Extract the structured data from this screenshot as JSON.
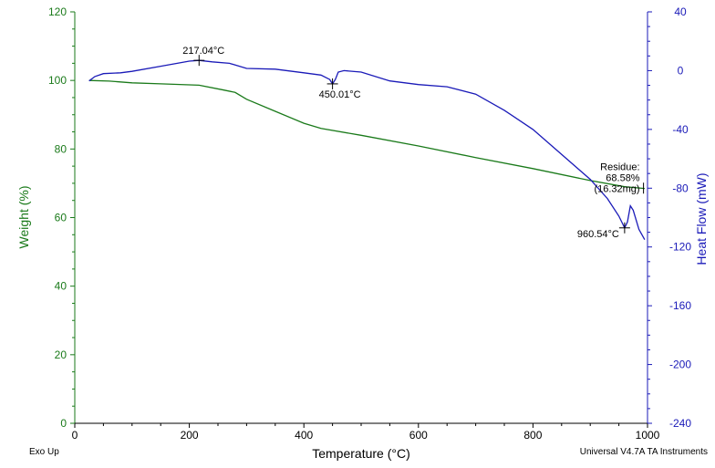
{
  "chart_data": {
    "type": "line",
    "xlabel": "Temperature (°C)",
    "ylabel_left": "Weight (%)",
    "ylabel_right": "Heat Flow (mW)",
    "xlim": [
      0,
      1000
    ],
    "ylim_left": [
      0,
      120
    ],
    "ylim_right": [
      -240,
      40
    ],
    "x_ticks": [
      0,
      200,
      400,
      600,
      800,
      1000
    ],
    "y_left_ticks": [
      0,
      20,
      40,
      60,
      80,
      100,
      120
    ],
    "y_right_ticks": [
      -240,
      -200,
      -160,
      -120,
      -80,
      -40,
      0,
      40
    ],
    "grid": false,
    "series": [
      {
        "axis": "left",
        "color": "#1a7a1a",
        "points": [
          [
            25,
            100
          ],
          [
            60,
            99.8
          ],
          [
            100,
            99.3
          ],
          [
            150,
            99.0
          ],
          [
            217,
            98.6
          ],
          [
            260,
            97.2
          ],
          [
            280,
            96.5
          ],
          [
            300,
            94.5
          ],
          [
            350,
            91.0
          ],
          [
            400,
            87.5
          ],
          [
            430,
            86.0
          ],
          [
            500,
            84.0
          ],
          [
            600,
            80.9
          ],
          [
            700,
            77.5
          ],
          [
            800,
            74.3
          ],
          [
            900,
            70.8
          ],
          [
            960,
            69.0
          ],
          [
            995,
            68.5
          ]
        ]
      },
      {
        "axis": "right",
        "color": "#1a1ab8",
        "points": [
          [
            25,
            -7
          ],
          [
            35,
            -4
          ],
          [
            50,
            -2
          ],
          [
            80,
            -1.5
          ],
          [
            100,
            -0.5
          ],
          [
            150,
            3
          ],
          [
            200,
            6.5
          ],
          [
            217,
            7
          ],
          [
            240,
            6
          ],
          [
            270,
            5
          ],
          [
            300,
            1.5
          ],
          [
            350,
            1
          ],
          [
            400,
            -1.5
          ],
          [
            430,
            -3
          ],
          [
            445,
            -6
          ],
          [
            450,
            -9
          ],
          [
            455,
            -6
          ],
          [
            460,
            -1
          ],
          [
            470,
            0
          ],
          [
            500,
            -1
          ],
          [
            550,
            -7
          ],
          [
            600,
            -9.5
          ],
          [
            650,
            -11
          ],
          [
            700,
            -16
          ],
          [
            750,
            -27
          ],
          [
            800,
            -40
          ],
          [
            850,
            -57
          ],
          [
            900,
            -74
          ],
          [
            930,
            -87
          ],
          [
            950,
            -99
          ],
          [
            960,
            -107
          ],
          [
            965,
            -103
          ],
          [
            970,
            -92
          ],
          [
            975,
            -95
          ],
          [
            985,
            -108
          ],
          [
            995,
            -115
          ]
        ]
      }
    ],
    "annotations": [
      {
        "text": "217.04°C",
        "x": 217,
        "y": 7,
        "axis": "right"
      },
      {
        "text": "450.01°C",
        "x": 450,
        "y": -9,
        "axis": "right"
      },
      {
        "text": "960.54°C",
        "x": 960,
        "y": -107,
        "axis": "right"
      },
      {
        "text": "Residue:",
        "x": 993,
        "y": 68.58,
        "axis": "left"
      },
      {
        "text": "68.58%",
        "x": 993,
        "y": 68.58,
        "axis": "left"
      },
      {
        "text": "(16.32mg)",
        "x": 993,
        "y": 68.58,
        "axis": "left"
      }
    ]
  },
  "footer": {
    "left": "Exo Up",
    "right": "Universal V4.7A TA Instruments"
  },
  "colors": {
    "left_axis": "#1a7a1a",
    "right_axis": "#1a1ab8",
    "axis_black": "#000000"
  }
}
